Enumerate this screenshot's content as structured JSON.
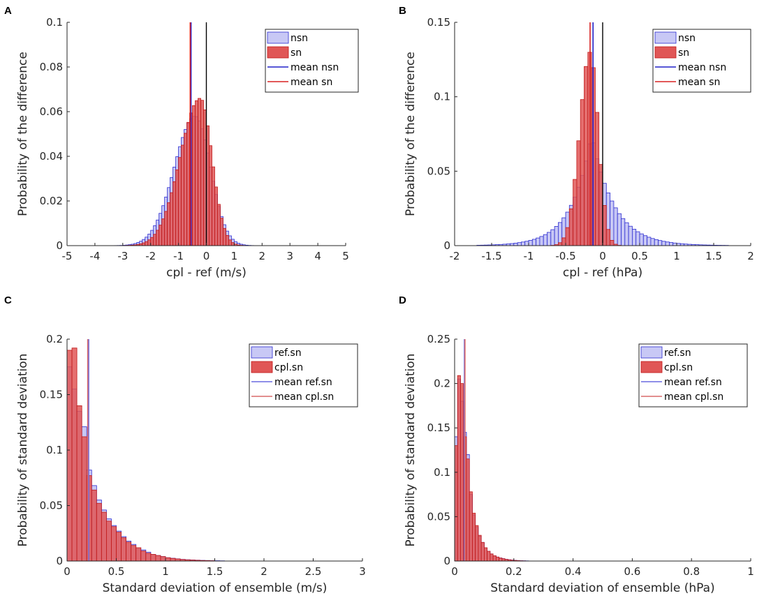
{
  "chart_data": [
    {
      "panel": "A",
      "type": "histogram",
      "xlabel": "cpl - ref (m/s)",
      "ylabel": "Probability of the difference",
      "xlim": [
        -5,
        5
      ],
      "ylim": [
        0,
        0.1
      ],
      "xticks": [
        -5,
        -4,
        -3,
        -2,
        -1,
        0,
        1,
        2,
        3,
        4,
        5
      ],
      "yticks": [
        0,
        0.02,
        0.04,
        0.06,
        0.08,
        0.1
      ],
      "legend_position": "top-right",
      "bin_width": 0.1,
      "vline_at": 0,
      "series": [
        {
          "name": "nsn",
          "kind": "hist",
          "color": "#c8c8f5",
          "edge": "#2b2bd0",
          "profile": {
            "type": "gauss",
            "peak": 0.058,
            "center": -0.4,
            "sigma_left": 0.75,
            "sigma_right": 0.55,
            "floor_from": -4.6,
            "floor_to": 3.3
          }
        },
        {
          "name": "sn",
          "kind": "hist",
          "color": "#e05656",
          "edge": "#c01818",
          "profile": {
            "type": "gauss",
            "peak": 0.066,
            "center": -0.22,
            "sigma_left": 0.72,
            "sigma_right": 0.42,
            "floor_from": -4.2,
            "floor_to": 2.6
          }
        },
        {
          "name": "mean nsn",
          "kind": "mean",
          "color": "#2020c8",
          "value": -0.55
        },
        {
          "name": "mean sn",
          "kind": "mean",
          "color": "#d82020",
          "value": -0.58
        }
      ]
    },
    {
      "panel": "B",
      "type": "histogram",
      "xlabel": "cpl - ref (hPa)",
      "ylabel": "Probability of the difference",
      "xlim": [
        -2,
        2
      ],
      "ylim": [
        0,
        0.15
      ],
      "xticks": [
        -2,
        -1.5,
        -1,
        -0.5,
        0,
        0.5,
        1,
        1.5,
        2
      ],
      "yticks": [
        0,
        0.05,
        0.1,
        0.15
      ],
      "legend_position": "top-right",
      "bin_width": 0.05,
      "vline_at": 0,
      "series": [
        {
          "name": "nsn",
          "kind": "hist",
          "color": "#c8c8f5",
          "edge": "#2b2bd0",
          "profile": {
            "type": "laplace",
            "peak": 0.075,
            "center": -0.15,
            "scale_left": 0.27,
            "scale_right": 0.3,
            "floor_from": -1.7,
            "floor_to": 1.7
          }
        },
        {
          "name": "sn",
          "kind": "hist",
          "color": "#e05656",
          "edge": "#c01818",
          "profile": {
            "type": "gauss",
            "peak": 0.13,
            "center": -0.17,
            "sigma_left": 0.14,
            "sigma_right": 0.11,
            "floor_from": -0.8,
            "floor_to": 0.5
          }
        },
        {
          "name": "mean nsn",
          "kind": "mean",
          "color": "#2020c8",
          "value": -0.13
        },
        {
          "name": "mean sn",
          "kind": "mean",
          "color": "#d82020",
          "value": -0.17
        }
      ]
    },
    {
      "panel": "C",
      "type": "histogram",
      "xlabel": "Standard deviation of ensemble (m/s)",
      "ylabel": "Probability of standard deviation",
      "xlim": [
        0,
        3
      ],
      "ylim": [
        0,
        0.2
      ],
      "xticks": [
        0,
        0.5,
        1,
        1.5,
        2,
        2.5,
        3
      ],
      "yticks": [
        0,
        0.05,
        0.1,
        0.15,
        0.2
      ],
      "legend_position": "top-right",
      "bin_width": 0.05,
      "series": [
        {
          "name": "ref.sn",
          "kind": "hist",
          "color": "#c8c8f5",
          "edge": "#2b2bd0",
          "values": [
            0.175,
            0.155,
            0.135,
            0.121,
            0.082,
            0.068,
            0.055,
            0.046,
            0.038,
            0.032,
            0.027,
            0.022,
            0.018,
            0.015,
            0.012,
            0.01,
            0.008,
            0.006,
            0.005,
            0.004,
            0.003,
            0.0025,
            0.002,
            0.0015,
            0.0012,
            0.001,
            0.0008,
            0.0006,
            0.0005,
            0.0004,
            0.0003,
            0.0002
          ]
        },
        {
          "name": "cpl.sn",
          "kind": "hist",
          "color": "#e05656",
          "edge": "#c01818",
          "values": [
            0.19,
            0.192,
            0.14,
            0.112,
            0.077,
            0.064,
            0.052,
            0.044,
            0.036,
            0.031,
            0.026,
            0.021,
            0.017,
            0.014,
            0.012,
            0.009,
            0.007,
            0.006,
            0.005,
            0.004,
            0.003,
            0.0024,
            0.0019,
            0.0014,
            0.0011,
            0.0009,
            0.0007,
            0.0005,
            0.0004,
            0.0003
          ]
        },
        {
          "name": "mean ref.sn",
          "kind": "mean",
          "color": "#6a6ae0",
          "value": 0.22
        },
        {
          "name": "mean cpl.sn",
          "kind": "mean",
          "color": "#d86a6a",
          "value": 0.21
        }
      ]
    },
    {
      "panel": "D",
      "type": "histogram",
      "xlabel": "Standard deviation of ensemble (hPa)",
      "ylabel": "Probability of standard deviation",
      "xlim": [
        0,
        1
      ],
      "ylim": [
        0,
        0.25
      ],
      "xticks": [
        0,
        0.2,
        0.4,
        0.6,
        0.8,
        1
      ],
      "yticks": [
        0,
        0.05,
        0.1,
        0.15,
        0.2,
        0.25
      ],
      "legend_position": "top-right",
      "bin_width": 0.01,
      "series": [
        {
          "name": "ref.sn",
          "kind": "hist",
          "color": "#c8c8f5",
          "edge": "#2b2bd0",
          "values": [
            0.14,
            0.205,
            0.18,
            0.145,
            0.12,
            0.075,
            0.052,
            0.038,
            0.028,
            0.021,
            0.015,
            0.011,
            0.008,
            0.006,
            0.0045,
            0.0035,
            0.0027,
            0.002,
            0.0015,
            0.0011,
            0.0008,
            0.0006,
            0.0004,
            0.0003,
            0.0002
          ]
        },
        {
          "name": "cpl.sn",
          "kind": "hist",
          "color": "#e05656",
          "edge": "#c01818",
          "values": [
            0.13,
            0.209,
            0.2,
            0.14,
            0.115,
            0.078,
            0.054,
            0.04,
            0.029,
            0.021,
            0.015,
            0.011,
            0.008,
            0.006,
            0.0045,
            0.0034,
            0.0026,
            0.0019,
            0.0014,
            0.001,
            0.0007,
            0.0005,
            0.0003,
            0.0002
          ]
        },
        {
          "name": "mean ref.sn",
          "kind": "mean",
          "color": "#6a6ae0",
          "value": 0.033
        },
        {
          "name": "mean cpl.sn",
          "kind": "mean",
          "color": "#d86a6a",
          "value": 0.035
        }
      ]
    }
  ]
}
